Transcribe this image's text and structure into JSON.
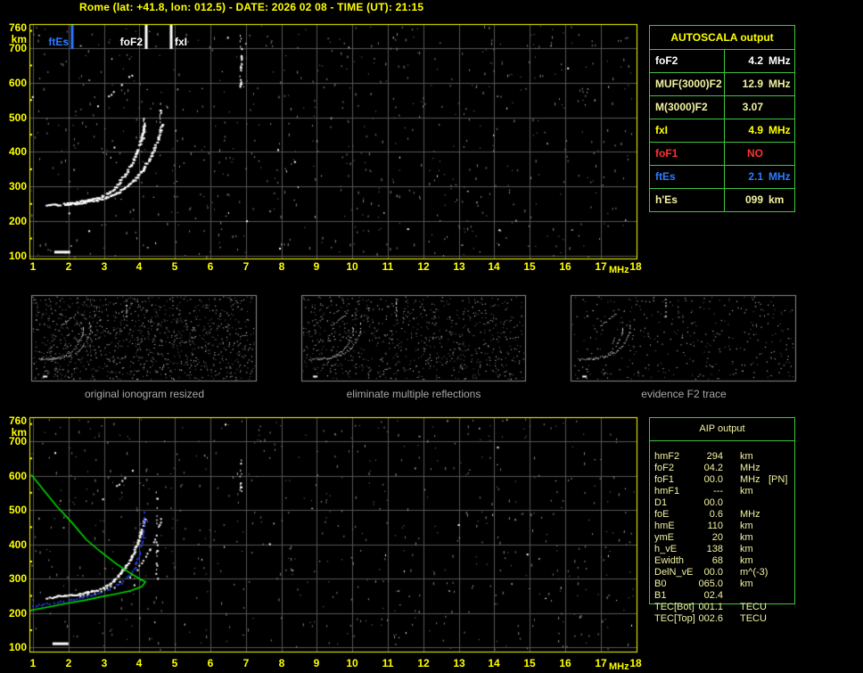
{
  "header": {
    "title": "Rome (lat: +41.8, lon: 012.5) - DATE: 2026 02 08 - TIME (UT): 21:15"
  },
  "colors": {
    "accent_yellow": "#ffff00",
    "cream": "#f2f2a2",
    "white": "#ffffff",
    "red": "#ff3232",
    "blue": "#2e7bff",
    "green_border": "#3fc53f",
    "profile_green": "#00d800",
    "trace_blue": "#2b3bf0",
    "grid_gray": "#565656",
    "noise_gray": "#8c8c8c",
    "caption_gray": "#a8a8a8",
    "thumb_border": "#8a8a8a"
  },
  "autoscala_table": {
    "title": "AUTOSCALA output",
    "rows": [
      {
        "label": "foF2",
        "value": "4.2",
        "unit": "MHz",
        "color": "white"
      },
      {
        "label": "MUF(3000)F2",
        "value": "12.9",
        "unit": "MHz",
        "color": "cream"
      },
      {
        "label": "M(3000)F2",
        "value": "3.07",
        "unit": "",
        "color": "cream"
      },
      {
        "label": "fxI",
        "value": "4.9",
        "unit": "MHz",
        "color": "yellow"
      },
      {
        "label": "foF1",
        "value": "NO",
        "unit": "",
        "color": "red"
      },
      {
        "label": "ftEs",
        "value": "2.1",
        "unit": "MHz",
        "color": "blue"
      },
      {
        "label": "h'Es",
        "value": "099",
        "unit": "km",
        "color": "cream"
      }
    ]
  },
  "aip_table": {
    "title": "AIP output",
    "rows": [
      {
        "label": "hmF2",
        "value": "294",
        "unit": "km",
        "extra": ""
      },
      {
        "label": "foF2",
        "value": "04.2",
        "unit": "MHz",
        "extra": ""
      },
      {
        "label": "foF1",
        "value": "00.0",
        "unit": "MHz",
        "extra": "[PN]"
      },
      {
        "label": "hmF1",
        "value": "---",
        "unit": "km",
        "extra": ""
      },
      {
        "label": "D1",
        "value": "00.0",
        "unit": "",
        "extra": ""
      },
      {
        "label": "foE",
        "value": "0.6",
        "unit": "MHz",
        "extra": ""
      },
      {
        "label": "hmE",
        "value": "110",
        "unit": "km",
        "extra": ""
      },
      {
        "label": "ymE",
        "value": "20",
        "unit": "km",
        "extra": ""
      },
      {
        "label": "h_vE",
        "value": "138",
        "unit": "km",
        "extra": ""
      },
      {
        "label": "Ewidth",
        "value": "68",
        "unit": "km",
        "extra": ""
      },
      {
        "label": "DelN_vE",
        "value": "00.0",
        "unit": "m^(-3)",
        "extra": ""
      },
      {
        "label": "B0",
        "value": "065.0",
        "unit": "km",
        "extra": ""
      },
      {
        "label": "B1",
        "value": "02.4",
        "unit": "",
        "extra": ""
      },
      {
        "label": "TEC[Bot]",
        "value": "001.1",
        "unit": "TECU",
        "extra": ""
      },
      {
        "label": "TEC[Top]",
        "value": "002.6",
        "unit": "TECU",
        "extra": ""
      }
    ]
  },
  "thumbnails": [
    {
      "caption": "original ionogram resized"
    },
    {
      "caption": "eliminate multiple reflections"
    },
    {
      "caption": "evidence F2 trace"
    }
  ],
  "axes": {
    "y_ticks": [
      "760",
      "km",
      "700",
      "600",
      "500",
      "400",
      "300",
      "200",
      "100"
    ],
    "x_ticks": [
      "1",
      "2",
      "3",
      "4",
      "5",
      "6",
      "7",
      "8",
      "9",
      "10",
      "11",
      "12",
      "13",
      "14",
      "15",
      "16",
      "17",
      "18"
    ],
    "x_unit": "MHz"
  },
  "chart_data": [
    {
      "id": "scaled_ionogram",
      "type": "scatter",
      "xlabel": "MHz",
      "ylabel": "km",
      "xlim": [
        1,
        18
      ],
      "ylim": [
        100,
        760
      ],
      "grid": true,
      "markers": [
        {
          "label": "ftEs",
          "mhz": 2.1,
          "color_key": "blue",
          "side": "left"
        },
        {
          "label": "foF2",
          "mhz": 4.2,
          "color_key": "white",
          "side": "left"
        },
        {
          "label": "fxI",
          "mhz": 4.9,
          "color_key": "yellow",
          "side": "right"
        }
      ],
      "scaled_values": {
        "foF2_MHz": 4.2,
        "fxI_MHz": 4.9,
        "ftEs_MHz": 2.1,
        "hEs_km": 99,
        "MUF3000F2_MHz": 12.9,
        "M3000F2": 3.07,
        "foF1": "NO"
      },
      "series": [
        {
          "name": "F2_trace_o_mode",
          "style": "band",
          "color_key": "white",
          "points": [
            [
              1.35,
              247
            ],
            [
              1.8,
              251
            ],
            [
              2.2,
              256
            ],
            [
              2.6,
              263
            ],
            [
              2.9,
              272
            ],
            [
              3.15,
              286
            ],
            [
              3.35,
              306
            ],
            [
              3.55,
              333
            ],
            [
              3.72,
              360
            ],
            [
              3.85,
              388
            ],
            [
              3.95,
              413
            ],
            [
              4.03,
              438
            ],
            [
              4.09,
              460
            ],
            [
              4.12,
              478
            ]
          ]
        },
        {
          "name": "F2_trace_x_mode",
          "style": "band",
          "color_key": "white",
          "points": [
            [
              1.9,
              250
            ],
            [
              2.3,
              254
            ],
            [
              2.7,
              261
            ],
            [
              3.0,
              269
            ],
            [
              3.3,
              281
            ],
            [
              3.6,
              299
            ],
            [
              3.85,
              322
            ],
            [
              4.05,
              347
            ],
            [
              4.22,
              375
            ],
            [
              4.37,
              405
            ],
            [
              4.48,
              435
            ],
            [
              4.56,
              462
            ],
            [
              4.62,
              488
            ]
          ]
        },
        {
          "name": "o_mode_asymptote",
          "style": "dots_v",
          "color_key": "white",
          "f": 4.13,
          "km": [
            440,
            525
          ],
          "count": 12
        },
        {
          "name": "x_mode_asymptote",
          "style": "dots_v",
          "color_key": "white",
          "f": 4.6,
          "km": [
            460,
            545
          ],
          "count": 10
        },
        {
          "name": "second_hop_reflection",
          "style": "dotted",
          "color_key": "white",
          "points": [
            [
              2.75,
              525
            ],
            [
              3.1,
              558
            ],
            [
              3.45,
              592
            ],
            [
              3.8,
              628
            ]
          ]
        },
        {
          "name": "Es_layer_echo",
          "style": "bar",
          "color_key": "white",
          "f": [
            1.6,
            2.05
          ],
          "km": 112
        },
        {
          "name": "interference_streak",
          "style": "dots_v",
          "color_key": "white",
          "f": 6.87,
          "km": [
            590,
            745
          ],
          "count": 26
        }
      ]
    },
    {
      "id": "profile_ionogram",
      "type": "scatter",
      "xlabel": "MHz",
      "ylabel": "km",
      "xlim": [
        1,
        18
      ],
      "ylim": [
        100,
        760
      ],
      "grid": true,
      "series": [
        {
          "name": "F2_trace_o_mode",
          "style": "band",
          "color_key": "white",
          "points": [
            [
              1.35,
              247
            ],
            [
              1.8,
              251
            ],
            [
              2.2,
              256
            ],
            [
              2.6,
              263
            ],
            [
              2.9,
              272
            ],
            [
              3.15,
              286
            ],
            [
              3.35,
              306
            ],
            [
              3.55,
              333
            ],
            [
              3.72,
              360
            ],
            [
              3.85,
              388
            ],
            [
              3.95,
              413
            ],
            [
              4.03,
              438
            ],
            [
              4.09,
              460
            ],
            [
              4.12,
              478
            ]
          ]
        },
        {
          "name": "F2_trace_x_mode",
          "style": "dotted",
          "color_key": "white",
          "points": [
            [
              1.9,
              250
            ],
            [
              2.3,
              254
            ],
            [
              2.7,
              261
            ],
            [
              3.0,
              269
            ],
            [
              3.3,
              281
            ],
            [
              3.6,
              299
            ],
            [
              3.85,
              322
            ],
            [
              4.05,
              347
            ],
            [
              4.22,
              375
            ],
            [
              4.37,
              405
            ],
            [
              4.48,
              435
            ],
            [
              4.56,
              462
            ],
            [
              4.62,
              488
            ]
          ]
        },
        {
          "name": "x_mode_asymptote",
          "style": "dots_v",
          "color_key": "white",
          "f": 4.5,
          "km": [
            300,
            560
          ],
          "count": 18
        },
        {
          "name": "second_hop_reflection",
          "style": "dotted",
          "color_key": "white",
          "points": [
            [
              2.9,
              528
            ],
            [
              3.35,
              572
            ],
            [
              3.8,
              618
            ]
          ]
        },
        {
          "name": "Es_layer_echo",
          "style": "bar",
          "color_key": "white",
          "f": [
            1.55,
            2.0
          ],
          "km": 112
        },
        {
          "name": "interference_streak",
          "style": "dots_v",
          "color_key": "white",
          "f": 6.87,
          "km": [
            555,
            650
          ],
          "count": 12
        },
        {
          "name": "restored_o_trace",
          "style": "dotted_band",
          "color_key": "trace_blue",
          "points": [
            [
              1.0,
              222
            ],
            [
              1.5,
              231
            ],
            [
              2.0,
              240
            ],
            [
              2.5,
              250
            ],
            [
              2.9,
              261
            ],
            [
              3.2,
              274
            ],
            [
              3.5,
              291
            ],
            [
              3.7,
              310
            ],
            [
              3.85,
              334
            ],
            [
              3.95,
              362
            ],
            [
              4.03,
              396
            ],
            [
              4.08,
              430
            ],
            [
              4.11,
              465
            ],
            [
              4.13,
              500
            ]
          ]
        },
        {
          "name": "electron_density_profile",
          "style": "line",
          "color_key": "profile_green",
          "points": [
            [
              0.95,
              603
            ],
            [
              1.3,
              558
            ],
            [
              1.65,
              513
            ],
            [
              2.1,
              463
            ],
            [
              2.5,
              414
            ],
            [
              2.9,
              379
            ],
            [
              3.3,
              347
            ],
            [
              3.7,
              319
            ],
            [
              3.95,
              303
            ],
            [
              4.17,
              291
            ],
            [
              4.07,
              277
            ],
            [
              3.75,
              265
            ],
            [
              3.35,
              256
            ],
            [
              2.9,
              247
            ],
            [
              2.5,
              238
            ],
            [
              2.0,
              229
            ],
            [
              1.5,
              219
            ],
            [
              1.0,
              209
            ],
            [
              0.93,
              206
            ]
          ]
        }
      ]
    }
  ],
  "render": {
    "plots": [
      {
        "chart": 0,
        "seed": 7,
        "noise_gray": 640,
        "noise_white": 85
      },
      {
        "chart": 1,
        "seed": 13,
        "noise_gray": 580,
        "noise_white": 65
      }
    ],
    "thumb_noise": [
      {
        "seed": 21,
        "count": 1150,
        "white_ratio": 0.45
      },
      {
        "seed": 22,
        "count": 830,
        "white_ratio": 0.45
      },
      {
        "seed": 23,
        "count": 370,
        "white_ratio": 0.55
      }
    ]
  }
}
